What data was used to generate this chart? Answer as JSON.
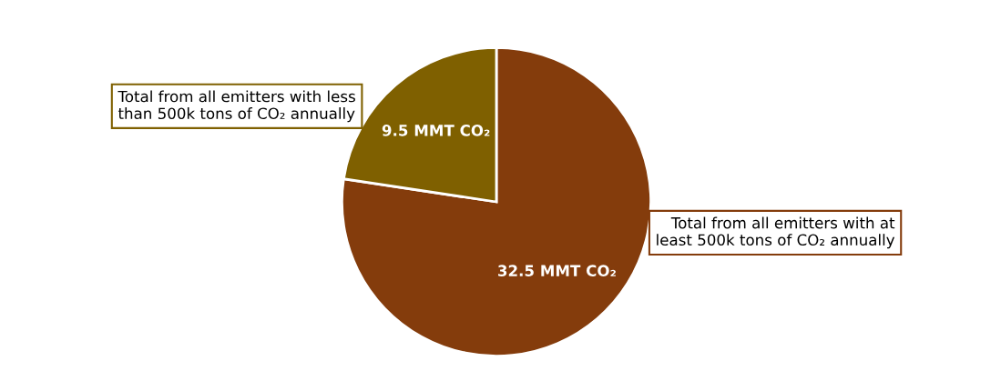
{
  "chart_data": {
    "type": "pie",
    "categories": [
      "Total from all emitters with at\nleast 500k tons of CO₂ annually",
      "Total from all emitters with less\nthan 500k tons of CO₂ annually"
    ],
    "values": [
      32.5,
      9.5
    ],
    "colors": [
      "#843c0c",
      "#7f6000"
    ],
    "value_labels": [
      "32.5 MMT CO₂",
      "9.5 MMT CO₂"
    ]
  }
}
